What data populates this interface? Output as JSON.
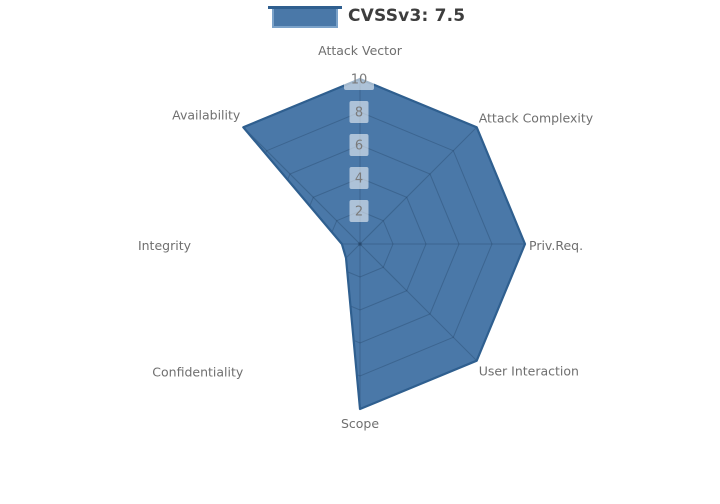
{
  "legend": {
    "label": "CVSSv3: 7.5"
  },
  "chart_data": {
    "type": "radar",
    "title": "",
    "categories": [
      "Attack Vector",
      "Attack Complexity",
      "Priv.Req.",
      "User Interaction",
      "Scope",
      "Confidentiality",
      "Integrity",
      "Availability"
    ],
    "series": [
      {
        "name": "CVSSv3: 7.5",
        "values": [
          10,
          10,
          10,
          10,
          10,
          1.2,
          1.1,
          10
        ]
      }
    ],
    "radial_ticks": [
      2,
      4,
      6,
      8,
      10
    ],
    "rlim": [
      0,
      10
    ],
    "grid": "spider-web, visible only inside filled area",
    "legend_position": "top-center"
  },
  "colors": {
    "series_fill": "#4a78a8",
    "series_line": "#2f5f8f",
    "legend_marker_border": "#7ba2c9",
    "grid_line": "rgba(20,44,72,0.25)",
    "tick_label_text": "#7b7b7b",
    "tick_label_bg": "rgba(255,255,255,0.55)",
    "axis_label_text": "#6f6f6f",
    "legend_text": "#3d3d3d"
  }
}
